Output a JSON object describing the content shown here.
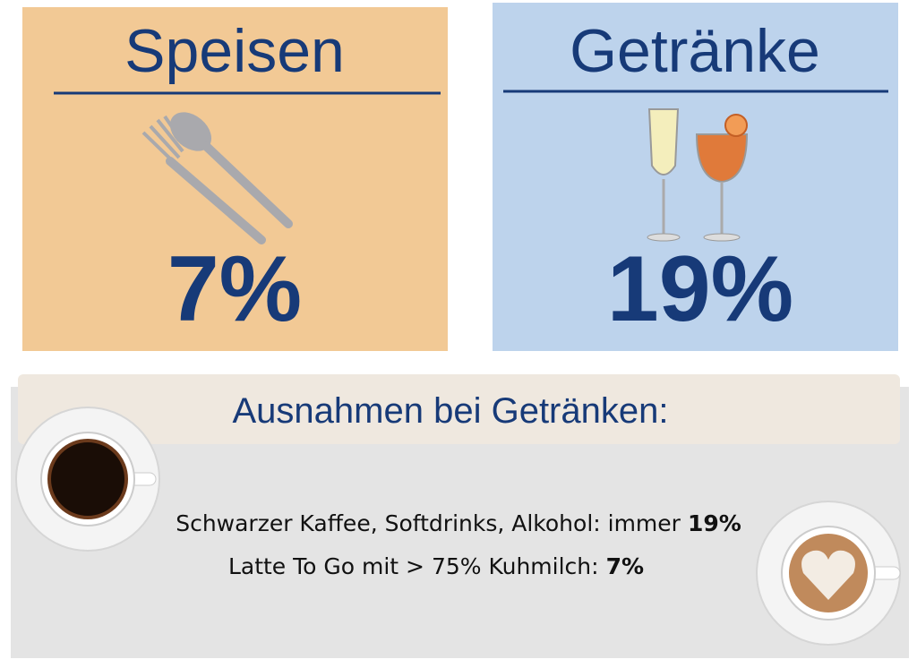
{
  "panels": [
    {
      "title": "Speisen",
      "rate": "7%"
    },
    {
      "title": "Getränke",
      "rate": "19%"
    }
  ],
  "exceptions": {
    "heading": "Ausnahmen bei Getränken:",
    "lines": [
      {
        "text": "Schwarzer Kaffee, Softdrinks, Alkohol: immer",
        "rate": "19%"
      },
      {
        "text": "Latte To Go mit > 75% Kuhmilch:",
        "rate": "7%"
      }
    ]
  }
}
